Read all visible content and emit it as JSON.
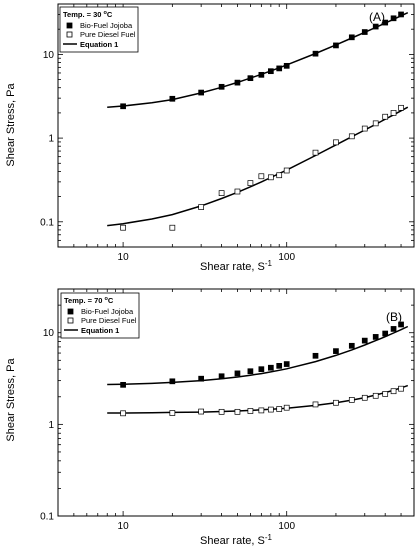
{
  "figure": {
    "y_axis_label": "Shear Stress, Pa",
    "x_axis_label_base": "Shear rate, S",
    "x_axis_label_sup": "-1"
  },
  "chart_data": [
    {
      "type": "scatter",
      "panel_label": "(A)",
      "legend_title_base": "Temp. = 30 ",
      "legend_title_sup": "o",
      "legend_title_unit": "C",
      "legend_placement": "top-left",
      "xlabel": "Shear rate, S^-1",
      "ylabel": "Shear Stress, Pa",
      "x_scale": "log",
      "y_scale": "log",
      "xlim": [
        4,
        600
      ],
      "ylim": [
        0.05,
        40
      ],
      "x_ticks": [
        10,
        100
      ],
      "x_tick_labels": [
        "10",
        "100"
      ],
      "y_ticks": [
        0.1,
        1,
        10
      ],
      "y_tick_labels": [
        "0.1",
        "1",
        "10"
      ],
      "grid": false,
      "series": [
        {
          "name": "Bio-Fuel Jojoba",
          "marker": "filled-square",
          "color": "#000000",
          "x": [
            10,
            20,
            30,
            40,
            50,
            60,
            70,
            80,
            90,
            100,
            150,
            200,
            250,
            300,
            350,
            400,
            450,
            500
          ],
          "y": [
            2.4,
            2.95,
            3.5,
            4.1,
            4.6,
            5.2,
            5.7,
            6.3,
            6.8,
            7.3,
            10.2,
            12.8,
            16.0,
            18.5,
            21.5,
            24.0,
            27.0,
            30.0
          ]
        },
        {
          "name": "Pure Diesel Fuel",
          "marker": "open-square",
          "color": "#000000",
          "x": [
            10,
            20,
            30,
            40,
            50,
            60,
            70,
            80,
            90,
            100,
            150,
            200,
            250,
            300,
            350,
            400,
            450,
            500
          ],
          "y": [
            0.085,
            0.085,
            0.15,
            0.22,
            0.23,
            0.29,
            0.35,
            0.34,
            0.36,
            0.41,
            0.67,
            0.89,
            1.05,
            1.3,
            1.5,
            1.8,
            2.0,
            2.3
          ]
        },
        {
          "name": "Equation 1",
          "type": "line",
          "color": "#000000",
          "curves": [
            {
              "x": [
                8,
                10,
                15,
                20,
                30,
                40,
                50,
                60,
                70,
                80,
                90,
                100,
                150,
                200,
                250,
                300,
                350,
                400,
                450,
                500,
                550
              ],
              "y": [
                2.33,
                2.42,
                2.64,
                2.88,
                3.47,
                4.04,
                4.63,
                5.21,
                5.78,
                6.35,
                6.92,
                7.48,
                10.25,
                12.97,
                15.68,
                18.35,
                21.0,
                23.63,
                26.25,
                28.9,
                31.5
              ]
            },
            {
              "x": [
                8,
                10,
                15,
                20,
                30,
                40,
                50,
                60,
                70,
                80,
                90,
                100,
                150,
                200,
                250,
                300,
                350,
                400,
                450,
                500,
                550
              ],
              "y": [
                0.09,
                0.095,
                0.108,
                0.122,
                0.155,
                0.19,
                0.225,
                0.262,
                0.3,
                0.338,
                0.377,
                0.415,
                0.62,
                0.83,
                1.04,
                1.25,
                1.46,
                1.68,
                1.9,
                2.12,
                2.34
              ]
            }
          ]
        }
      ]
    },
    {
      "type": "scatter",
      "panel_label": "(B)",
      "legend_title_base": "Temp. = 70 ",
      "legend_title_sup": "o",
      "legend_title_unit": "C",
      "legend_placement": "top-left",
      "xlabel": "Shear rate, S^-1",
      "ylabel": "Shear Stress, Pa",
      "x_scale": "log",
      "y_scale": "log",
      "xlim": [
        4,
        600
      ],
      "ylim": [
        0.1,
        30
      ],
      "x_ticks": [
        10,
        100
      ],
      "x_tick_labels": [
        "10",
        "100"
      ],
      "y_ticks": [
        0.1,
        1,
        10
      ],
      "y_tick_labels": [
        "0.1",
        "1",
        "10"
      ],
      "grid": false,
      "series": [
        {
          "name": "Bio-Fuel Jojoba",
          "marker": "filled-square",
          "color": "#000000",
          "x": [
            10,
            20,
            30,
            40,
            50,
            60,
            70,
            80,
            90,
            100,
            150,
            200,
            250,
            300,
            350,
            400,
            450,
            500
          ],
          "y": [
            2.7,
            2.95,
            3.15,
            3.35,
            3.6,
            3.8,
            4.0,
            4.15,
            4.35,
            4.55,
            5.6,
            6.3,
            7.2,
            8.2,
            9.0,
            9.8,
            11.0,
            12.3
          ]
        },
        {
          "name": "Pure Diesel Fuel",
          "marker": "open-square",
          "color": "#000000",
          "x": [
            10,
            20,
            30,
            40,
            50,
            60,
            70,
            80,
            90,
            100,
            150,
            200,
            250,
            300,
            350,
            400,
            450,
            500
          ],
          "y": [
            1.32,
            1.33,
            1.38,
            1.37,
            1.37,
            1.4,
            1.42,
            1.45,
            1.47,
            1.52,
            1.65,
            1.72,
            1.85,
            1.95,
            2.05,
            2.15,
            2.3,
            2.45
          ]
        },
        {
          "name": "Equation 1",
          "type": "line",
          "color": "#000000",
          "curves": [
            {
              "x": [
                8,
                10,
                15,
                20,
                30,
                40,
                50,
                60,
                70,
                80,
                90,
                100,
                150,
                200,
                250,
                300,
                350,
                400,
                450,
                500,
                550
              ],
              "y": [
                2.72,
                2.74,
                2.8,
                2.87,
                3.0,
                3.14,
                3.29,
                3.44,
                3.58,
                3.74,
                3.89,
                4.04,
                4.84,
                5.66,
                6.5,
                7.34,
                8.2,
                9.05,
                9.92,
                10.8,
                11.7
              ]
            },
            {
              "x": [
                8,
                10,
                15,
                20,
                30,
                40,
                50,
                60,
                70,
                80,
                90,
                100,
                150,
                200,
                250,
                300,
                350,
                400,
                450,
                500,
                550
              ],
              "y": [
                1.33,
                1.33,
                1.34,
                1.35,
                1.36,
                1.38,
                1.4,
                1.42,
                1.44,
                1.46,
                1.48,
                1.5,
                1.61,
                1.72,
                1.84,
                1.96,
                2.09,
                2.22,
                2.36,
                2.5,
                2.65
              ]
            }
          ]
        }
      ]
    }
  ]
}
